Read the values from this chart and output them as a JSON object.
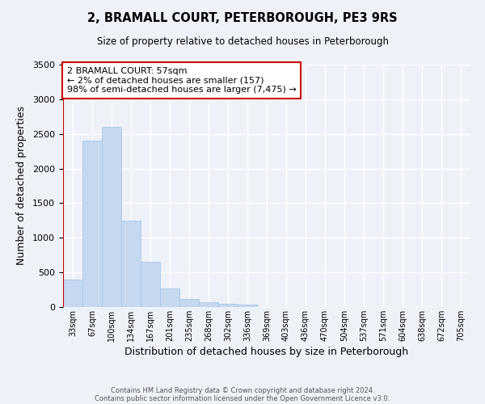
{
  "title": "2, BRAMALL COURT, PETERBOROUGH, PE3 9RS",
  "subtitle": "Size of property relative to detached houses in Peterborough",
  "xlabel": "Distribution of detached houses by size in Peterborough",
  "ylabel": "Number of detached properties",
  "bar_color": "#c5d8f0",
  "bar_edge_color": "#a8c8e8",
  "background_color": "#eef2f8",
  "grid_color": "#ffffff",
  "bin_labels": [
    "33sqm",
    "67sqm",
    "100sqm",
    "134sqm",
    "167sqm",
    "201sqm",
    "235sqm",
    "268sqm",
    "302sqm",
    "336sqm",
    "369sqm",
    "403sqm",
    "436sqm",
    "470sqm",
    "504sqm",
    "537sqm",
    "571sqm",
    "604sqm",
    "638sqm",
    "672sqm",
    "705sqm"
  ],
  "bin_values": [
    400,
    2400,
    2600,
    1250,
    650,
    270,
    115,
    65,
    50,
    30,
    0,
    0,
    0,
    0,
    0,
    0,
    0,
    0,
    0,
    0,
    0
  ],
  "marker_color": "#cc0000",
  "ylim": [
    0,
    3500
  ],
  "yticks": [
    0,
    500,
    1000,
    1500,
    2000,
    2500,
    3000,
    3500
  ],
  "annotation_title": "2 BRAMALL COURT: 57sqm",
  "annotation_line1": "← 2% of detached houses are smaller (157)",
  "annotation_line2": "98% of semi-detached houses are larger (7,475) →",
  "annotation_box_color": "#ffffff",
  "annotation_box_edge": "#cc0000",
  "footer_line1": "Contains HM Land Registry data © Crown copyright and database right 2024.",
  "footer_line2": "Contains public sector information licensed under the Open Government Licence v3.0."
}
